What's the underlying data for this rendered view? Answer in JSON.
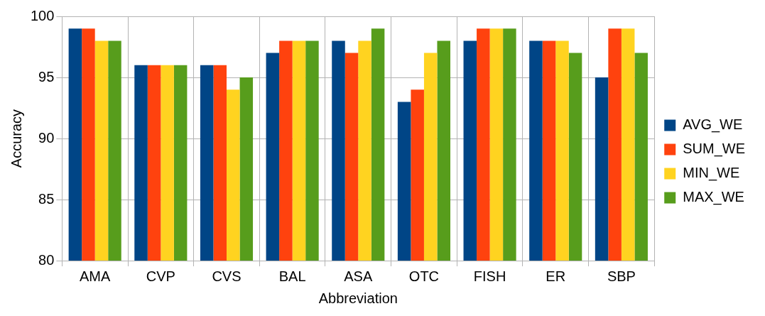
{
  "chart_data": {
    "type": "bar",
    "xlabel": "Abbreviation",
    "ylabel": "Accuracy",
    "categories": [
      "AMA",
      "CVP",
      "CVS",
      "BAL",
      "ASA",
      "OTC",
      "FISH",
      "ER",
      "SBP"
    ],
    "series": [
      {
        "name": "AVG_WE",
        "color": "#004586",
        "values": [
          99,
          96,
          96,
          97,
          98,
          93,
          98,
          98,
          95
        ]
      },
      {
        "name": "SUM_WE",
        "color": "#ff420e",
        "values": [
          99,
          96,
          96,
          98,
          97,
          94,
          99,
          98,
          99
        ]
      },
      {
        "name": "MIN_WE",
        "color": "#ffd320",
        "values": [
          98,
          96,
          94,
          98,
          98,
          97,
          99,
          98,
          99
        ]
      },
      {
        "name": "MAX_WE",
        "color": "#579d1c",
        "values": [
          98,
          96,
          95,
          98,
          99,
          98,
          99,
          97,
          97
        ]
      }
    ],
    "ylim": [
      80,
      100
    ],
    "yticks": [
      80,
      85,
      90,
      95,
      100
    ],
    "grid": true,
    "legend": "right"
  }
}
